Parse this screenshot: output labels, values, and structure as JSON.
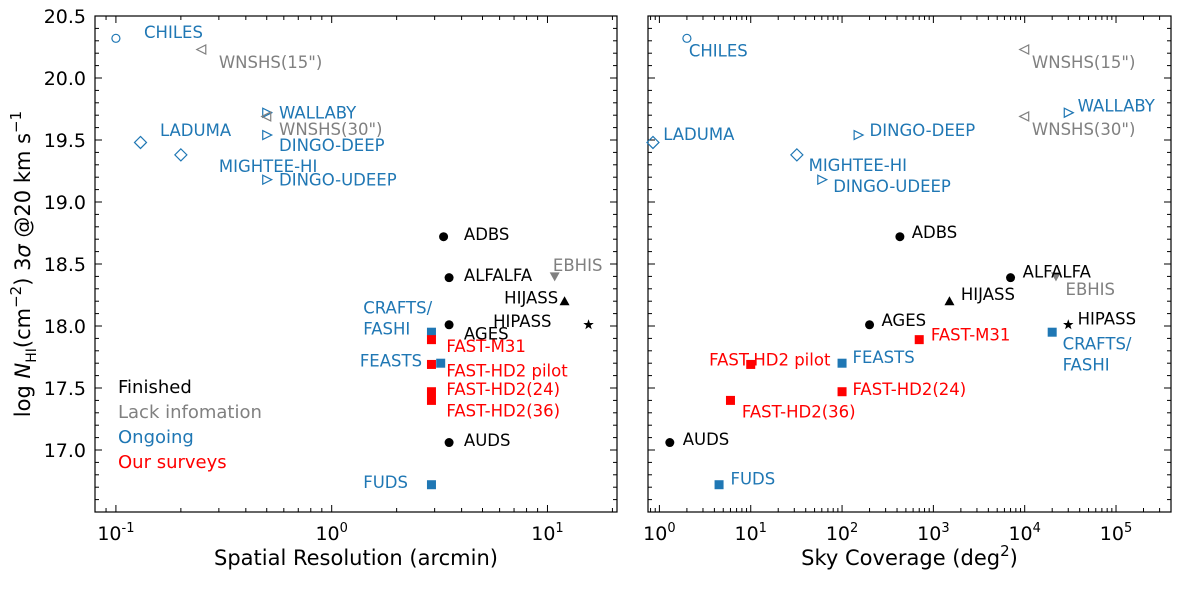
{
  "colors": {
    "finished": "#000000",
    "lack": "#808080",
    "ongoing": "#1f77b4",
    "ours": "#ff0000"
  },
  "legend": [
    {
      "label": "Finished",
      "color": "#000000"
    },
    {
      "label": "Lack infomation",
      "color": "#808080"
    },
    {
      "label": "Ongoing",
      "color": "#1f77b4"
    },
    {
      "label": "Our surveys",
      "color": "#ff0000"
    }
  ],
  "chart_data": [
    {
      "type": "scatter",
      "xlabel": "Spatial Resolution (arcmin)",
      "ylabel": "log N_HI(cm^-2) 3σ @20 km s^-1",
      "xscale": "log",
      "xlim": [
        0.08,
        21
      ],
      "ylim": [
        16.5,
        20.5
      ],
      "xticks": [
        {
          "v": 0.1,
          "label": "10^-1"
        },
        {
          "v": 1,
          "label": "10^0"
        },
        {
          "v": 10,
          "label": "10^1"
        }
      ],
      "yticks": [
        "17.0",
        "17.5",
        "18.0",
        "18.5",
        "19.0",
        "19.5",
        "20.0",
        "20.5"
      ],
      "grid": false,
      "legend_position": "bottom-left",
      "points": [
        {
          "name": "CHILES",
          "x": 0.1,
          "y": 20.32,
          "marker": "circle-open",
          "group": "ongoing"
        },
        {
          "name": "WNSHS(15\")",
          "x": 0.25,
          "y": 20.23,
          "marker": "tri-left-open",
          "group": "lack"
        },
        {
          "name": "WALLABY",
          "x": 0.5,
          "y": 19.72,
          "marker": "tri-right-open",
          "group": "ongoing"
        },
        {
          "name": "WNSHS(30\")",
          "x": 0.5,
          "y": 19.69,
          "marker": "tri-left-open",
          "group": "lack"
        },
        {
          "name": "LADUMA",
          "x": 0.13,
          "y": 19.48,
          "marker": "diamond-open",
          "group": "ongoing"
        },
        {
          "name": "DINGO-DEEP",
          "x": 0.5,
          "y": 19.54,
          "marker": "tri-right-open",
          "group": "ongoing"
        },
        {
          "name": "MIGHTEE-HI",
          "x": 0.2,
          "y": 19.38,
          "marker": "diamond-open",
          "group": "ongoing"
        },
        {
          "name": "DINGO-UDEEP",
          "x": 0.5,
          "y": 19.18,
          "marker": "tri-right-open",
          "group": "ongoing"
        },
        {
          "name": "ADBS",
          "x": 3.3,
          "y": 18.72,
          "marker": "circle",
          "group": "finished"
        },
        {
          "name": "ALFALFA",
          "x": 3.5,
          "y": 18.39,
          "marker": "circle",
          "group": "finished"
        },
        {
          "name": "EBHIS",
          "x": 10.8,
          "y": 18.4,
          "marker": "tri-down",
          "group": "lack"
        },
        {
          "name": "HIJASS",
          "x": 12,
          "y": 18.2,
          "marker": "tri-up",
          "group": "finished"
        },
        {
          "name": "HIPASS",
          "x": 15.5,
          "y": 18.01,
          "marker": "star",
          "group": "finished"
        },
        {
          "name": "AGES",
          "x": 3.5,
          "y": 18.01,
          "marker": "circle",
          "group": "finished"
        },
        {
          "name": "CRAFTS/FASHI",
          "x": 2.9,
          "y": 17.95,
          "marker": "square",
          "group": "ongoing"
        },
        {
          "name": "FAST-M31",
          "x": 2.9,
          "y": 17.89,
          "marker": "square",
          "group": "ours"
        },
        {
          "name": "FEASTS",
          "x": 3.2,
          "y": 17.7,
          "marker": "square",
          "group": "ongoing"
        },
        {
          "name": "FAST-HD2 pilot",
          "x": 2.9,
          "y": 17.69,
          "marker": "square",
          "group": "ours"
        },
        {
          "name": "FAST-HD2(24)",
          "x": 2.9,
          "y": 17.47,
          "marker": "square",
          "group": "ours"
        },
        {
          "name": "FAST-HD2(36)",
          "x": 2.9,
          "y": 17.4,
          "marker": "square",
          "group": "ours"
        },
        {
          "name": "AUDS",
          "x": 3.5,
          "y": 17.06,
          "marker": "circle",
          "group": "finished"
        },
        {
          "name": "FUDS",
          "x": 2.9,
          "y": 16.72,
          "marker": "square",
          "group": "ongoing"
        }
      ],
      "labels": [
        {
          "text": "CHILES",
          "group": "ongoing",
          "at": [
            0.135,
            20.37
          ]
        },
        {
          "text": "WNSHS(15\")",
          "group": "lack",
          "at": [
            0.3,
            20.13
          ]
        },
        {
          "text": "WALLABY",
          "group": "ongoing",
          "at": [
            0.57,
            19.72
          ]
        },
        {
          "text": "WNSHS(30\")",
          "group": "lack",
          "at": [
            0.57,
            19.59
          ]
        },
        {
          "text": "LADUMA",
          "group": "ongoing",
          "at": [
            0.16,
            19.58
          ]
        },
        {
          "text": "DINGO-DEEP",
          "group": "ongoing",
          "at": [
            0.57,
            19.46
          ]
        },
        {
          "text": "MIGHTEE-HI",
          "group": "ongoing",
          "at": [
            0.3,
            19.29
          ]
        },
        {
          "text": "DINGO-UDEEP",
          "group": "ongoing",
          "at": [
            0.57,
            19.18
          ]
        },
        {
          "text": "ADBS",
          "group": "finished",
          "at": [
            4.1,
            18.74
          ]
        },
        {
          "text": "ALFALFA",
          "group": "finished",
          "at": [
            4.1,
            18.41
          ]
        },
        {
          "text": "EBHIS",
          "group": "lack",
          "at": [
            10.6,
            18.49
          ]
        },
        {
          "text": "HIJASS",
          "group": "finished",
          "at": [
            6.3,
            18.23
          ],
          "anchor": "start"
        },
        {
          "text": "HIPASS",
          "group": "finished",
          "at": [
            5.6,
            18.04
          ]
        },
        {
          "text": "AGES",
          "group": "finished",
          "at": [
            4.1,
            17.94
          ]
        },
        {
          "text": "CRAFTS/",
          "group": "ongoing",
          "at": [
            1.4,
            18.15
          ]
        },
        {
          "text": "FASHI",
          "group": "ongoing",
          "at": [
            1.4,
            17.98
          ]
        },
        {
          "text": "FAST-M31",
          "group": "ours",
          "at": [
            3.4,
            17.84
          ]
        },
        {
          "text": "FEASTS",
          "group": "ongoing",
          "at": [
            1.35,
            17.72
          ]
        },
        {
          "text": "FAST-HD2 pilot",
          "group": "ours",
          "at": [
            3.4,
            17.64
          ]
        },
        {
          "text": "FAST-HD2(24)",
          "group": "ours",
          "at": [
            3.4,
            17.49
          ]
        },
        {
          "text": "FAST-HD2(36)",
          "group": "ours",
          "at": [
            3.4,
            17.32
          ]
        },
        {
          "text": "AUDS",
          "group": "finished",
          "at": [
            4.1,
            17.08
          ]
        },
        {
          "text": "FUDS",
          "group": "ongoing",
          "at": [
            1.4,
            16.74
          ]
        }
      ]
    },
    {
      "type": "scatter",
      "xlabel": "Sky Coverage (deg^2)",
      "xscale": "log",
      "xlim": [
        0.75,
        400000
      ],
      "ylim": [
        16.5,
        20.5
      ],
      "xticks": [
        {
          "v": 1,
          "label": "10^0"
        },
        {
          "v": 10,
          "label": "10^1"
        },
        {
          "v": 100,
          "label": "10^2"
        },
        {
          "v": 1000,
          "label": "10^3"
        },
        {
          "v": 10000,
          "label": "10^4"
        },
        {
          "v": 100000,
          "label": "10^5"
        }
      ],
      "grid": false,
      "points": [
        {
          "name": "CHILES",
          "x": 2,
          "y": 20.32,
          "marker": "circle-open",
          "group": "ongoing"
        },
        {
          "name": "WNSHS(15\")",
          "x": 10000,
          "y": 20.23,
          "marker": "tri-left-open",
          "group": "lack"
        },
        {
          "name": "WALLABY",
          "x": 30000,
          "y": 19.72,
          "marker": "tri-right-open",
          "group": "ongoing"
        },
        {
          "name": "WNSHS(30\")",
          "x": 10000,
          "y": 19.69,
          "marker": "tri-left-open",
          "group": "lack"
        },
        {
          "name": "LADUMA",
          "x": 0.85,
          "y": 19.48,
          "marker": "diamond-open",
          "group": "ongoing"
        },
        {
          "name": "DINGO-DEEP",
          "x": 150,
          "y": 19.54,
          "marker": "tri-right-open",
          "group": "ongoing"
        },
        {
          "name": "MIGHTEE-HI",
          "x": 32,
          "y": 19.38,
          "marker": "diamond-open",
          "group": "ongoing"
        },
        {
          "name": "DINGO-UDEEP",
          "x": 60,
          "y": 19.18,
          "marker": "tri-right-open",
          "group": "ongoing"
        },
        {
          "name": "ADBS",
          "x": 430,
          "y": 18.72,
          "marker": "circle",
          "group": "finished"
        },
        {
          "name": "ALFALFA",
          "x": 7000,
          "y": 18.39,
          "marker": "circle",
          "group": "finished"
        },
        {
          "name": "EBHIS",
          "x": 22000,
          "y": 18.4,
          "marker": "tri-down",
          "group": "lack"
        },
        {
          "name": "HIJASS",
          "x": 1500,
          "y": 18.2,
          "marker": "tri-up",
          "group": "finished"
        },
        {
          "name": "HIPASS",
          "x": 30000,
          "y": 18.01,
          "marker": "star",
          "group": "finished"
        },
        {
          "name": "AGES",
          "x": 200,
          "y": 18.01,
          "marker": "circle",
          "group": "finished"
        },
        {
          "name": "CRAFTS/FASHI",
          "x": 20000,
          "y": 17.95,
          "marker": "square",
          "group": "ongoing"
        },
        {
          "name": "FAST-M31",
          "x": 700,
          "y": 17.89,
          "marker": "square",
          "group": "ours"
        },
        {
          "name": "FEASTS",
          "x": 100,
          "y": 17.7,
          "marker": "square",
          "group": "ongoing"
        },
        {
          "name": "FAST-HD2 pilot",
          "x": 10,
          "y": 17.69,
          "marker": "square",
          "group": "ours"
        },
        {
          "name": "FAST-HD2(24)",
          "x": 100,
          "y": 17.47,
          "marker": "square",
          "group": "ours"
        },
        {
          "name": "FAST-HD2(36)",
          "x": 6,
          "y": 17.4,
          "marker": "square",
          "group": "ours"
        },
        {
          "name": "AUDS",
          "x": 1.3,
          "y": 17.06,
          "marker": "circle",
          "group": "finished"
        },
        {
          "name": "FUDS",
          "x": 4.5,
          "y": 16.72,
          "marker": "square",
          "group": "ongoing"
        }
      ],
      "labels": [
        {
          "text": "CHILES",
          "group": "ongoing",
          "at": [
            2.1,
            20.22
          ]
        },
        {
          "text": "WNSHS(15\")",
          "group": "lack",
          "at": [
            12000,
            20.13
          ]
        },
        {
          "text": "WALLABY",
          "group": "ongoing",
          "at": [
            38000,
            19.78
          ]
        },
        {
          "text": "WNSHS(30\")",
          "group": "lack",
          "at": [
            12000,
            19.59
          ]
        },
        {
          "text": "LADUMA",
          "group": "ongoing",
          "at": [
            1.1,
            19.55
          ]
        },
        {
          "text": "DINGO-DEEP",
          "group": "ongoing",
          "at": [
            200,
            19.58
          ]
        },
        {
          "text": "MIGHTEE-HI",
          "group": "ongoing",
          "at": [
            43,
            19.3
          ]
        },
        {
          "text": "DINGO-UDEEP",
          "group": "ongoing",
          "at": [
            80,
            19.13
          ]
        },
        {
          "text": "ADBS",
          "group": "finished",
          "at": [
            580,
            18.76
          ]
        },
        {
          "text": "ALFALFA",
          "group": "finished",
          "at": [
            9500,
            18.44
          ]
        },
        {
          "text": "EBHIS",
          "group": "lack",
          "at": [
            28000,
            18.3
          ]
        },
        {
          "text": "HIJASS",
          "group": "finished",
          "at": [
            2000,
            18.26
          ]
        },
        {
          "text": "HIPASS",
          "group": "finished",
          "at": [
            38000,
            18.06
          ]
        },
        {
          "text": "AGES",
          "group": "finished",
          "at": [
            270,
            18.05
          ]
        },
        {
          "text": "CRAFTS/",
          "group": "ongoing",
          "at": [
            26000,
            17.86
          ]
        },
        {
          "text": "FASHI",
          "group": "ongoing",
          "at": [
            26000,
            17.69
          ]
        },
        {
          "text": "FAST-M31",
          "group": "ours",
          "at": [
            940,
            17.93
          ]
        },
        {
          "text": "FEASTS",
          "group": "ongoing",
          "at": [
            130,
            17.75
          ]
        },
        {
          "text": "FAST-HD2 pilot",
          "group": "ours",
          "at": [
            3.5,
            17.73
          ]
        },
        {
          "text": "FAST-HD2(24)",
          "group": "ours",
          "at": [
            130,
            17.49
          ]
        },
        {
          "text": "FAST-HD2(36)",
          "group": "ours",
          "at": [
            8,
            17.31
          ]
        },
        {
          "text": "AUDS",
          "group": "finished",
          "at": [
            1.8,
            17.09
          ]
        },
        {
          "text": "FUDS",
          "group": "ongoing",
          "at": [
            6,
            16.77
          ]
        }
      ]
    }
  ]
}
